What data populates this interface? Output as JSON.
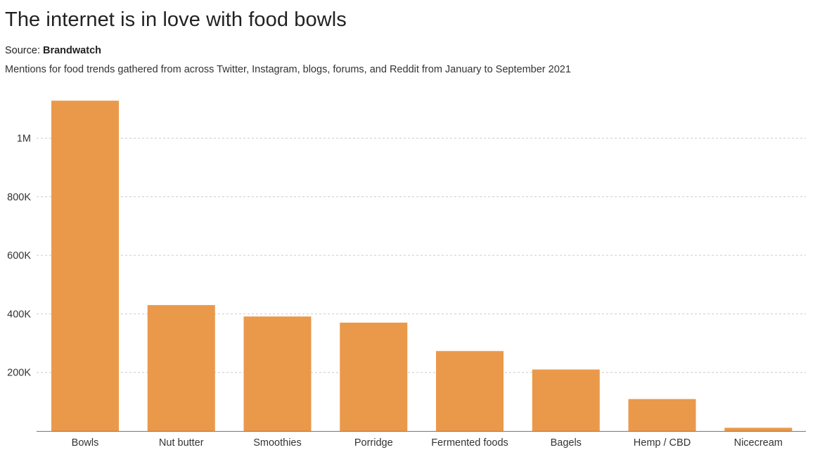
{
  "header": {
    "title": "The internet is in love with food bowls",
    "source_label": "Source: ",
    "source_name": "Brandwatch",
    "subtitle": "Mentions for food trends gathered from across Twitter, Instagram, blogs, forums, and Reddit from January to September 2021"
  },
  "chart_data": {
    "type": "bar",
    "title": "The internet is in love with food bowls",
    "subtitle": "Mentions for food trends gathered from across Twitter, Instagram, blogs, forums, and Reddit from January to September 2021",
    "categories": [
      "Bowls",
      "Nut butter",
      "Smoothies",
      "Porridge",
      "Fermented foods",
      "Bagels",
      "Hemp / CBD",
      "Nicecream"
    ],
    "values": [
      1128000,
      430000,
      391000,
      370000,
      273000,
      210000,
      109000,
      11000
    ],
    "xlabel": "",
    "ylabel": "",
    "ylim": [
      0,
      1150000
    ],
    "yticks": [
      200000,
      400000,
      600000,
      800000,
      1000000
    ],
    "ytick_labels": [
      "200K",
      "400K",
      "600K",
      "800K",
      "1M"
    ],
    "grid": true,
    "grid_style": "dashed",
    "bar_color": "#EA994A",
    "grid_color": "#CCCCCC",
    "axis_color": "#777777"
  }
}
